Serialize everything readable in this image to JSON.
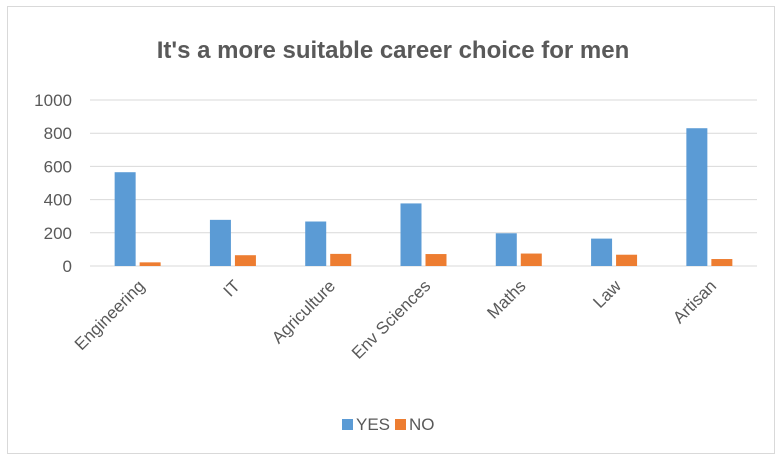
{
  "chart_data": {
    "type": "bar",
    "title": "It's a more suitable career choice for men",
    "categories": [
      "Engineering",
      "IT",
      "Agriculture",
      "Env Sciences",
      "Maths",
      "Law",
      "Artisan"
    ],
    "series": [
      {
        "name": "YES",
        "color": "#5b9bd5",
        "values": [
          565,
          278,
          268,
          377,
          197,
          165,
          830
        ]
      },
      {
        "name": "NO",
        "color": "#ed7d31",
        "values": [
          22,
          65,
          73,
          72,
          75,
          68,
          42
        ]
      }
    ],
    "ylim": [
      0,
      1000
    ],
    "yticks": [
      0,
      200,
      400,
      600,
      800,
      1000
    ],
    "grid": true,
    "legend_position": "bottom"
  }
}
